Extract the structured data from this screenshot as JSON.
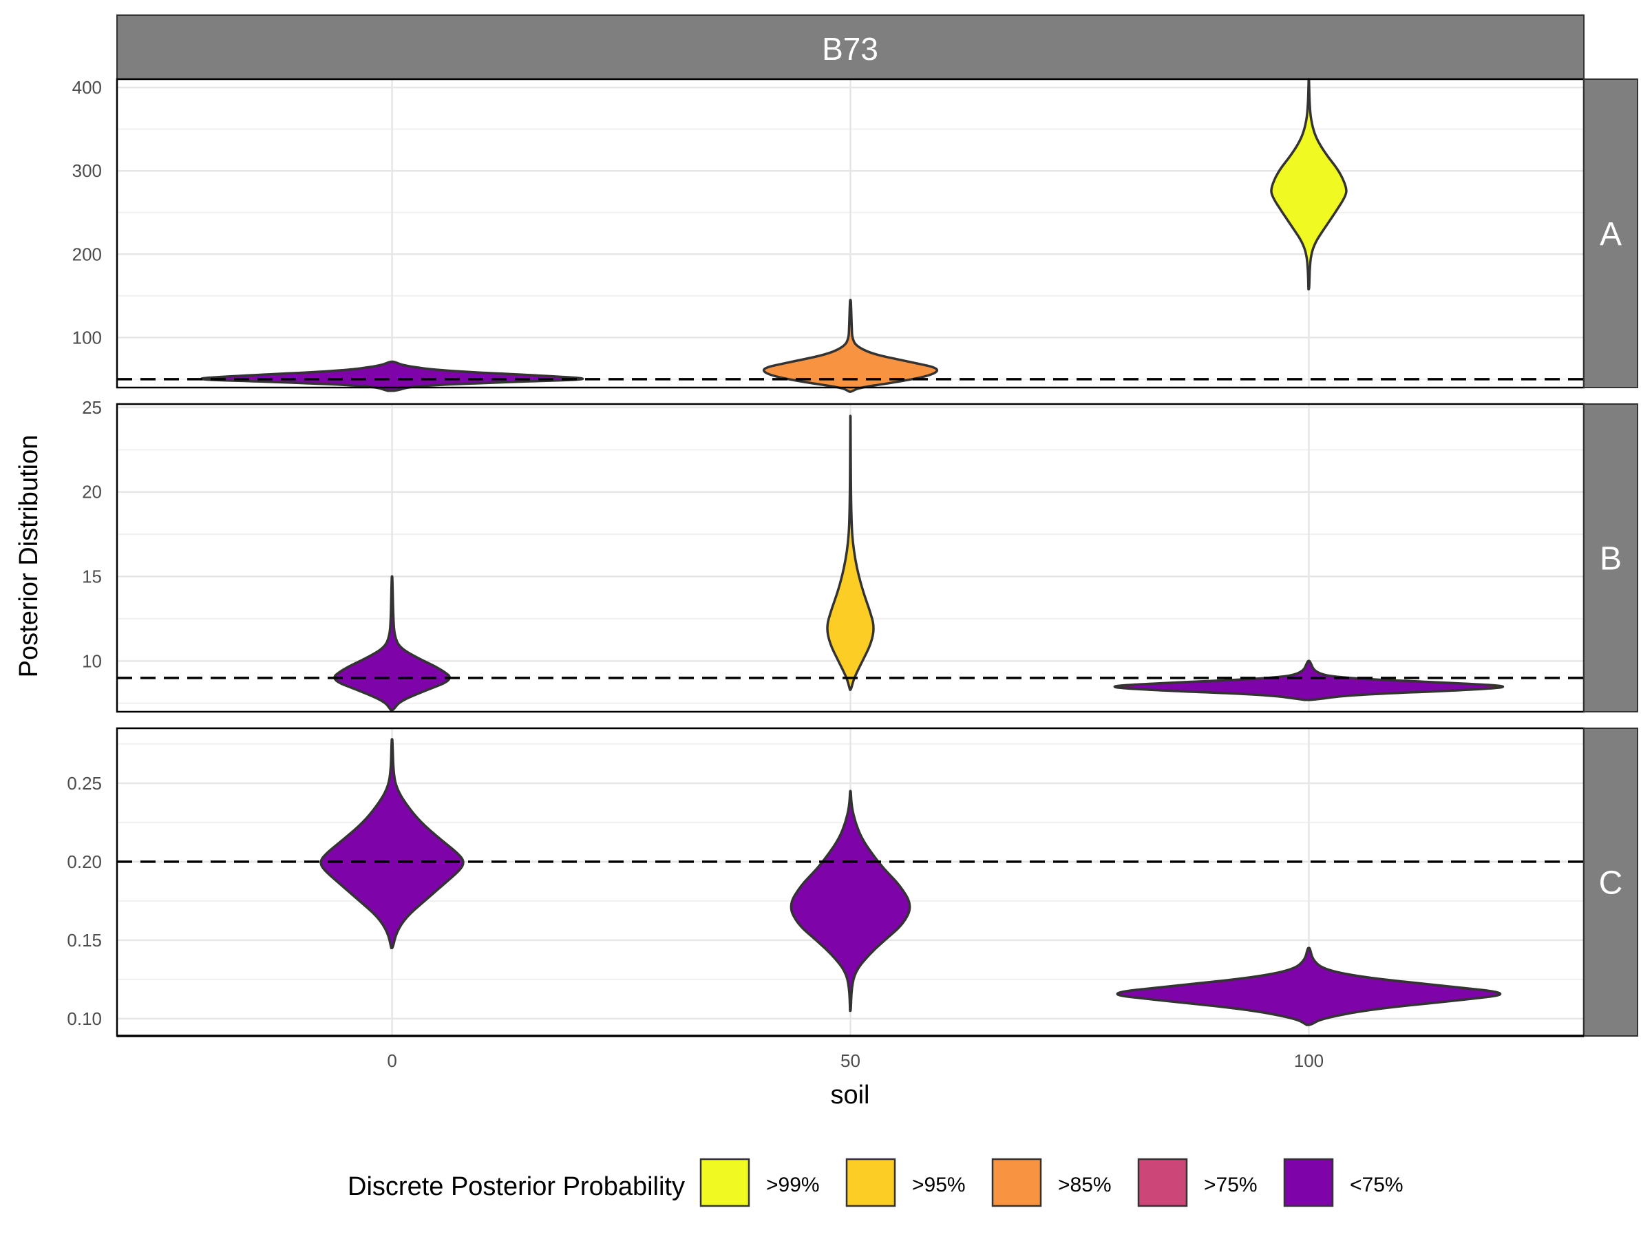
{
  "chart_data": {
    "type": "violin",
    "title": "",
    "column_strip": "B73",
    "xlabel": "soil",
    "ylabel": "Posterior Distribution",
    "x_ticks": [
      "0",
      "50",
      "100"
    ],
    "x_values": [
      0,
      50,
      100
    ],
    "grid": true,
    "panels": [
      {
        "label": "A",
        "ylim": [
          40,
          410
        ],
        "y_ticks": [
          100,
          200,
          300,
          400
        ],
        "y_tick_labels": [
          "100",
          "200",
          "300",
          "400"
        ],
        "reference_line": 50,
        "violins": [
          {
            "x": 0,
            "category": "<75%",
            "min": 36,
            "max": 71,
            "profile": [
              [
                36,
                0.02
              ],
              [
                42,
                0.1
              ],
              [
                47,
                0.6
              ],
              [
                50,
                1.0
              ],
              [
                54,
                0.75
              ],
              [
                60,
                0.25
              ],
              [
                66,
                0.06
              ],
              [
                71,
                0.01
              ]
            ]
          },
          {
            "x": 50,
            "category": ">85%",
            "min": 35,
            "max": 145,
            "profile": [
              [
                35,
                0.01
              ],
              [
                40,
                0.1
              ],
              [
                47,
                0.55
              ],
              [
                55,
                0.92
              ],
              [
                63,
                1.0
              ],
              [
                70,
                0.7
              ],
              [
                80,
                0.25
              ],
              [
                90,
                0.06
              ],
              [
                100,
                0.02
              ],
              [
                110,
                0.015
              ],
              [
                145,
                0.005
              ]
            ]
          },
          {
            "x": 100,
            "category": ">99%",
            "min": 158,
            "max": 410,
            "profile": [
              [
                158,
                0.01
              ],
              [
                180,
                0.02
              ],
              [
                200,
                0.06
              ],
              [
                215,
                0.18
              ],
              [
                230,
                0.4
              ],
              [
                250,
                0.7
              ],
              [
                270,
                0.98
              ],
              [
                280,
                1.0
              ],
              [
                300,
                0.8
              ],
              [
                320,
                0.45
              ],
              [
                340,
                0.18
              ],
              [
                360,
                0.06
              ],
              [
                380,
                0.02
              ],
              [
                410,
                0.005
              ]
            ]
          }
        ]
      },
      {
        "label": "B",
        "ylim": [
          7,
          25.2
        ],
        "y_ticks": [
          10,
          15,
          20,
          25
        ],
        "y_tick_labels": [
          "10",
          "15",
          "20",
          "25"
        ],
        "reference_line": 9,
        "violins": [
          {
            "x": 0,
            "category": "<75%",
            "min": 7.1,
            "max": 15,
            "profile": [
              [
                7.1,
                0.02
              ],
              [
                7.6,
                0.12
              ],
              [
                8.2,
                0.5
              ],
              [
                8.9,
                1.0
              ],
              [
                9.5,
                0.8
              ],
              [
                10.2,
                0.4
              ],
              [
                10.8,
                0.12
              ],
              [
                11.5,
                0.04
              ],
              [
                12.5,
                0.02
              ],
              [
                15,
                0.005
              ]
            ]
          },
          {
            "x": 50,
            "category": ">95%",
            "min": 8.3,
            "max": 24.5,
            "profile": [
              [
                8.3,
                0.02
              ],
              [
                9,
                0.15
              ],
              [
                10,
                0.5
              ],
              [
                11,
                0.85
              ],
              [
                12,
                1.0
              ],
              [
                13,
                0.8
              ],
              [
                14,
                0.55
              ],
              [
                15,
                0.35
              ],
              [
                16,
                0.2
              ],
              [
                17,
                0.1
              ],
              [
                18,
                0.05
              ],
              [
                20,
                0.02
              ],
              [
                24.5,
                0.005
              ]
            ]
          },
          {
            "x": 100,
            "category": "<75%",
            "min": 7.7,
            "max": 10,
            "profile": [
              [
                7.7,
                0.02
              ],
              [
                8.0,
                0.2
              ],
              [
                8.3,
                0.8
              ],
              [
                8.5,
                1.0
              ],
              [
                8.7,
                0.7
              ],
              [
                9.0,
                0.15
              ],
              [
                9.3,
                0.03
              ],
              [
                10,
                0.005
              ]
            ]
          }
        ]
      },
      {
        "label": "C",
        "ylim": [
          0.089,
          0.285
        ],
        "y_ticks": [
          0.1,
          0.15,
          0.2,
          0.25
        ],
        "y_tick_labels": [
          "0.10",
          "0.15",
          "0.20",
          "0.25"
        ],
        "reference_line": 0.2,
        "violins": [
          {
            "x": 0,
            "category": "<75%",
            "min": 0.145,
            "max": 0.278,
            "profile": [
              [
                0.145,
                0.01
              ],
              [
                0.155,
                0.06
              ],
              [
                0.165,
                0.2
              ],
              [
                0.175,
                0.45
              ],
              [
                0.185,
                0.7
              ],
              [
                0.195,
                0.95
              ],
              [
                0.2,
                1.0
              ],
              [
                0.205,
                0.92
              ],
              [
                0.215,
                0.65
              ],
              [
                0.225,
                0.4
              ],
              [
                0.235,
                0.22
              ],
              [
                0.245,
                0.08
              ],
              [
                0.255,
                0.02
              ],
              [
                0.278,
                0.005
              ]
            ]
          },
          {
            "x": 50,
            "category": "<75%",
            "min": 0.105,
            "max": 0.245,
            "profile": [
              [
                0.105,
                0.005
              ],
              [
                0.12,
                0.02
              ],
              [
                0.13,
                0.08
              ],
              [
                0.14,
                0.28
              ],
              [
                0.15,
                0.55
              ],
              [
                0.16,
                0.85
              ],
              [
                0.172,
                1.0
              ],
              [
                0.185,
                0.8
              ],
              [
                0.195,
                0.55
              ],
              [
                0.205,
                0.35
              ],
              [
                0.215,
                0.18
              ],
              [
                0.225,
                0.08
              ],
              [
                0.235,
                0.02
              ],
              [
                0.245,
                0.005
              ]
            ]
          },
          {
            "x": 100,
            "category": "<75%",
            "min": 0.096,
            "max": 0.145,
            "profile": [
              [
                0.096,
                0.01
              ],
              [
                0.1,
                0.06
              ],
              [
                0.106,
                0.3
              ],
              [
                0.112,
                0.75
              ],
              [
                0.116,
                1.0
              ],
              [
                0.121,
                0.65
              ],
              [
                0.126,
                0.28
              ],
              [
                0.131,
                0.08
              ],
              [
                0.137,
                0.02
              ],
              [
                0.145,
                0.005
              ]
            ]
          }
        ]
      }
    ],
    "legend": {
      "title": "Discrete Posterior Probability",
      "placement": "bottom",
      "items": [
        {
          "label": ">99%",
          "color": "#F0F921"
        },
        {
          "label": ">95%",
          "color": "#FCCE25"
        },
        {
          "label": ">85%",
          "color": "#F89441"
        },
        {
          "label": ">75%",
          "color": "#CC4778"
        },
        {
          "label": "<75%",
          "color": "#7E03A8"
        }
      ]
    }
  }
}
